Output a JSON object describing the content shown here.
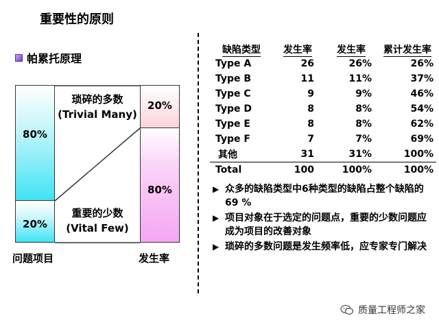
{
  "title": "重要性的原则",
  "subtitle": "帕累托原理",
  "diagram": {
    "left_top_pct": "80%",
    "left_bottom_pct": "20%",
    "right_top_pct": "20%",
    "right_bottom_pct": "80%",
    "trivial_line1": "琐碎的多数",
    "trivial_line2": "(Trivial Many)",
    "vital_line1": "重要的少数",
    "vital_line2": "(Vital Few)",
    "left_axis_label": "问题项目",
    "right_axis_label": "发生率",
    "colors": {
      "cyan": "#3fe3f5",
      "pink": "#f4a6f2",
      "light_pink": "#fde6e8"
    }
  },
  "table": {
    "headers": [
      "缺陷类型",
      "发生率",
      "发生率",
      "累计发生率"
    ],
    "rows": [
      [
        "Type A",
        "26",
        "26%",
        "26%"
      ],
      [
        "Type B",
        "11",
        "11%",
        "37%"
      ],
      [
        "Type C",
        "9",
        "9%",
        "46%"
      ],
      [
        "Type D",
        "8",
        "8%",
        "54%"
      ],
      [
        "Type E",
        "8",
        "8%",
        "62%"
      ],
      [
        "Type F",
        "7",
        "7%",
        "69%"
      ],
      [
        "其他",
        "31",
        "31%",
        "100%"
      ]
    ],
    "total": [
      "Total",
      "100",
      "100%",
      "100%"
    ]
  },
  "points": [
    "众多的缺陷类型中6种类型的缺陷占整个缺陷的 69 %",
    "项目对象在于选定的问题点，重要的少数问题应成为项目的改善对象",
    "琐碎的多数问题是发生频率低，应专家专门解决"
  ],
  "watermark": "质量工程师之家"
}
